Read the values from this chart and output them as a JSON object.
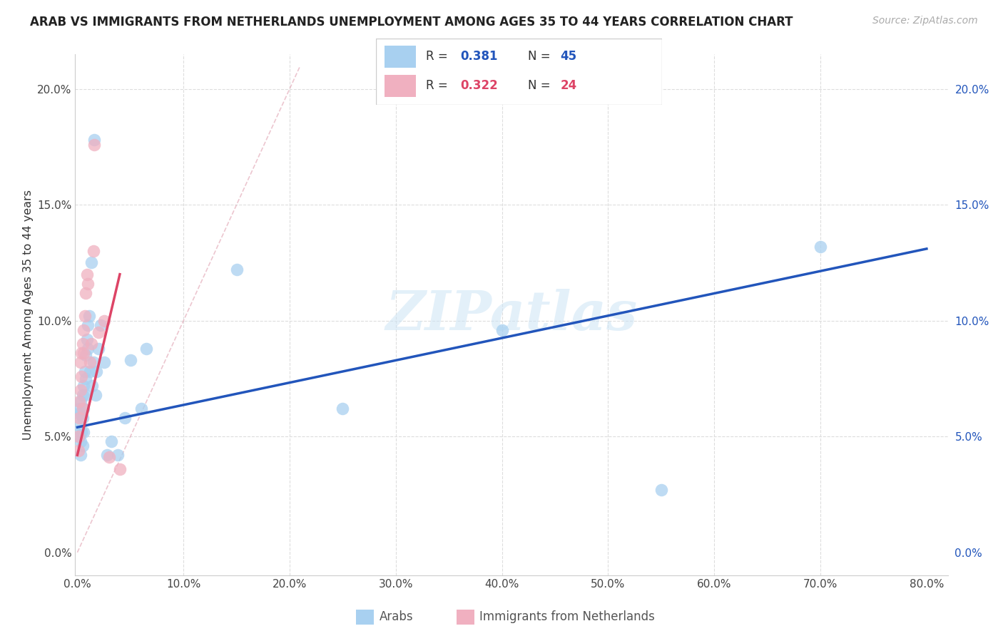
{
  "title": "ARAB VS IMMIGRANTS FROM NETHERLANDS UNEMPLOYMENT AMONG AGES 35 TO 44 YEARS CORRELATION CHART",
  "source": "Source: ZipAtlas.com",
  "ylabel": "Unemployment Among Ages 35 to 44 years",
  "xlim_lo": -0.002,
  "xlim_hi": 0.82,
  "ylim_lo": -0.01,
  "ylim_hi": 0.215,
  "xticks": [
    0.0,
    0.1,
    0.2,
    0.3,
    0.4,
    0.5,
    0.6,
    0.7,
    0.8
  ],
  "xticklabels": [
    "0.0%",
    "10.0%",
    "20.0%",
    "30.0%",
    "40.0%",
    "50.0%",
    "60.0%",
    "70.0%",
    "80.0%"
  ],
  "yticks": [
    0.0,
    0.05,
    0.1,
    0.15,
    0.2
  ],
  "yticklabels": [
    "0.0%",
    "5.0%",
    "10.0%",
    "15.0%",
    "20.0%"
  ],
  "blue_r": "0.381",
  "blue_n": "45",
  "pink_r": "0.322",
  "pink_n": "24",
  "legend_label1": "Arabs",
  "legend_label2": "Immigrants from Netherlands",
  "watermark": "ZIPatlas",
  "blue_fill": "#a8d0f0",
  "blue_line": "#2255bb",
  "pink_fill": "#f0b0c0",
  "pink_line": "#dd4466",
  "diag_color": "#cccccc",
  "grid_color": "#dddddd",
  "arab_x": [
    0.001,
    0.001,
    0.002,
    0.002,
    0.003,
    0.003,
    0.003,
    0.004,
    0.004,
    0.005,
    0.005,
    0.005,
    0.006,
    0.006,
    0.006,
    0.007,
    0.007,
    0.008,
    0.008,
    0.009,
    0.01,
    0.01,
    0.011,
    0.012,
    0.013,
    0.014,
    0.015,
    0.016,
    0.017,
    0.018,
    0.02,
    0.022,
    0.025,
    0.028,
    0.032,
    0.038,
    0.045,
    0.05,
    0.06,
    0.065,
    0.15,
    0.25,
    0.4,
    0.55,
    0.7
  ],
  "arab_y": [
    0.06,
    0.055,
    0.062,
    0.05,
    0.065,
    0.048,
    0.042,
    0.06,
    0.052,
    0.068,
    0.058,
    0.046,
    0.072,
    0.062,
    0.052,
    0.078,
    0.068,
    0.085,
    0.075,
    0.092,
    0.088,
    0.098,
    0.102,
    0.078,
    0.125,
    0.072,
    0.082,
    0.178,
    0.068,
    0.078,
    0.088,
    0.098,
    0.082,
    0.042,
    0.048,
    0.042,
    0.058,
    0.083,
    0.062,
    0.088,
    0.122,
    0.062,
    0.096,
    0.027,
    0.132
  ],
  "neth_x": [
    0.001,
    0.001,
    0.002,
    0.002,
    0.003,
    0.003,
    0.004,
    0.004,
    0.005,
    0.005,
    0.006,
    0.006,
    0.007,
    0.008,
    0.009,
    0.01,
    0.012,
    0.013,
    0.015,
    0.016,
    0.02,
    0.025,
    0.03,
    0.04
  ],
  "neth_y": [
    0.05,
    0.044,
    0.065,
    0.058,
    0.082,
    0.07,
    0.086,
    0.076,
    0.09,
    0.062,
    0.096,
    0.086,
    0.102,
    0.112,
    0.12,
    0.116,
    0.082,
    0.09,
    0.13,
    0.176,
    0.095,
    0.1,
    0.041,
    0.036
  ],
  "blue_line_x0": 0.0,
  "blue_line_x1": 0.8,
  "blue_line_y0": 0.054,
  "blue_line_y1": 0.131,
  "pink_line_x0": 0.0,
  "pink_line_x1": 0.04,
  "pink_line_y0": 0.042,
  "pink_line_y1": 0.12
}
